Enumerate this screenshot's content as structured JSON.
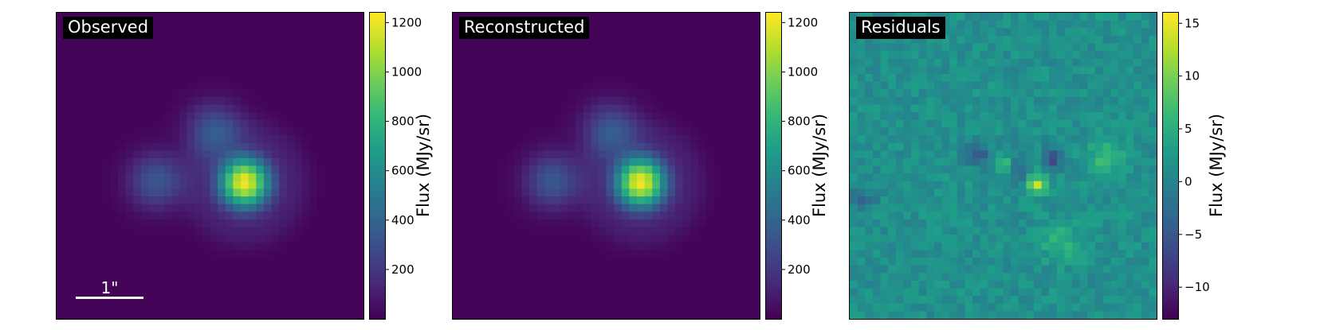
{
  "chart_data": [
    {
      "type": "heatmap",
      "title": "Observed",
      "scalebar_label": "1\"",
      "colormap": "viridis",
      "colorbar": {
        "label": "Flux (MJy/sr)",
        "range": [
          0,
          1240
        ],
        "ticks": [
          200,
          400,
          600,
          800,
          1000,
          1200
        ],
        "tick_labels": [
          "200",
          "400",
          "600",
          "800",
          "1000",
          "1200"
        ]
      }
    },
    {
      "type": "heatmap",
      "title": "Reconstructed",
      "colormap": "viridis",
      "colorbar": {
        "label": "Flux (MJy/sr)",
        "range": [
          0,
          1240
        ],
        "ticks": [
          200,
          400,
          600,
          800,
          1000,
          1200
        ],
        "tick_labels": [
          "200",
          "400",
          "600",
          "800",
          "1000",
          "1200"
        ]
      }
    },
    {
      "type": "heatmap",
      "title": "Residuals",
      "colormap": "viridis",
      "colorbar": {
        "label": "Flux (MJy/sr)",
        "range": [
          -13,
          16
        ],
        "ticks": [
          -10,
          -5,
          0,
          5,
          10,
          15
        ],
        "tick_labels": [
          "−10",
          "−5",
          "0",
          "5",
          "10",
          "15"
        ]
      }
    }
  ]
}
